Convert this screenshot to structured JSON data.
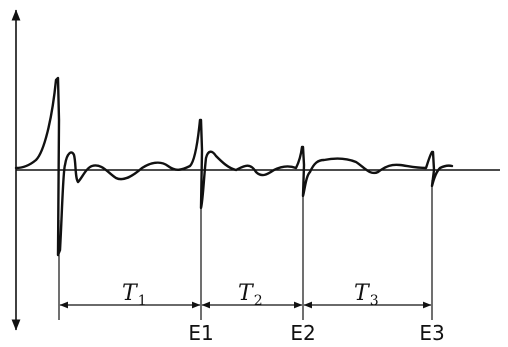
{
  "intervals": [
    {
      "symbol": "T",
      "subscript": "1"
    },
    {
      "symbol": "T",
      "subscript": "2"
    },
    {
      "symbol": "T",
      "subscript": "3"
    }
  ],
  "events": [
    {
      "label": "E1"
    },
    {
      "label": "E2"
    },
    {
      "label": "E3"
    }
  ],
  "colors": {
    "ink": "#111111",
    "background": "#ffffff"
  }
}
